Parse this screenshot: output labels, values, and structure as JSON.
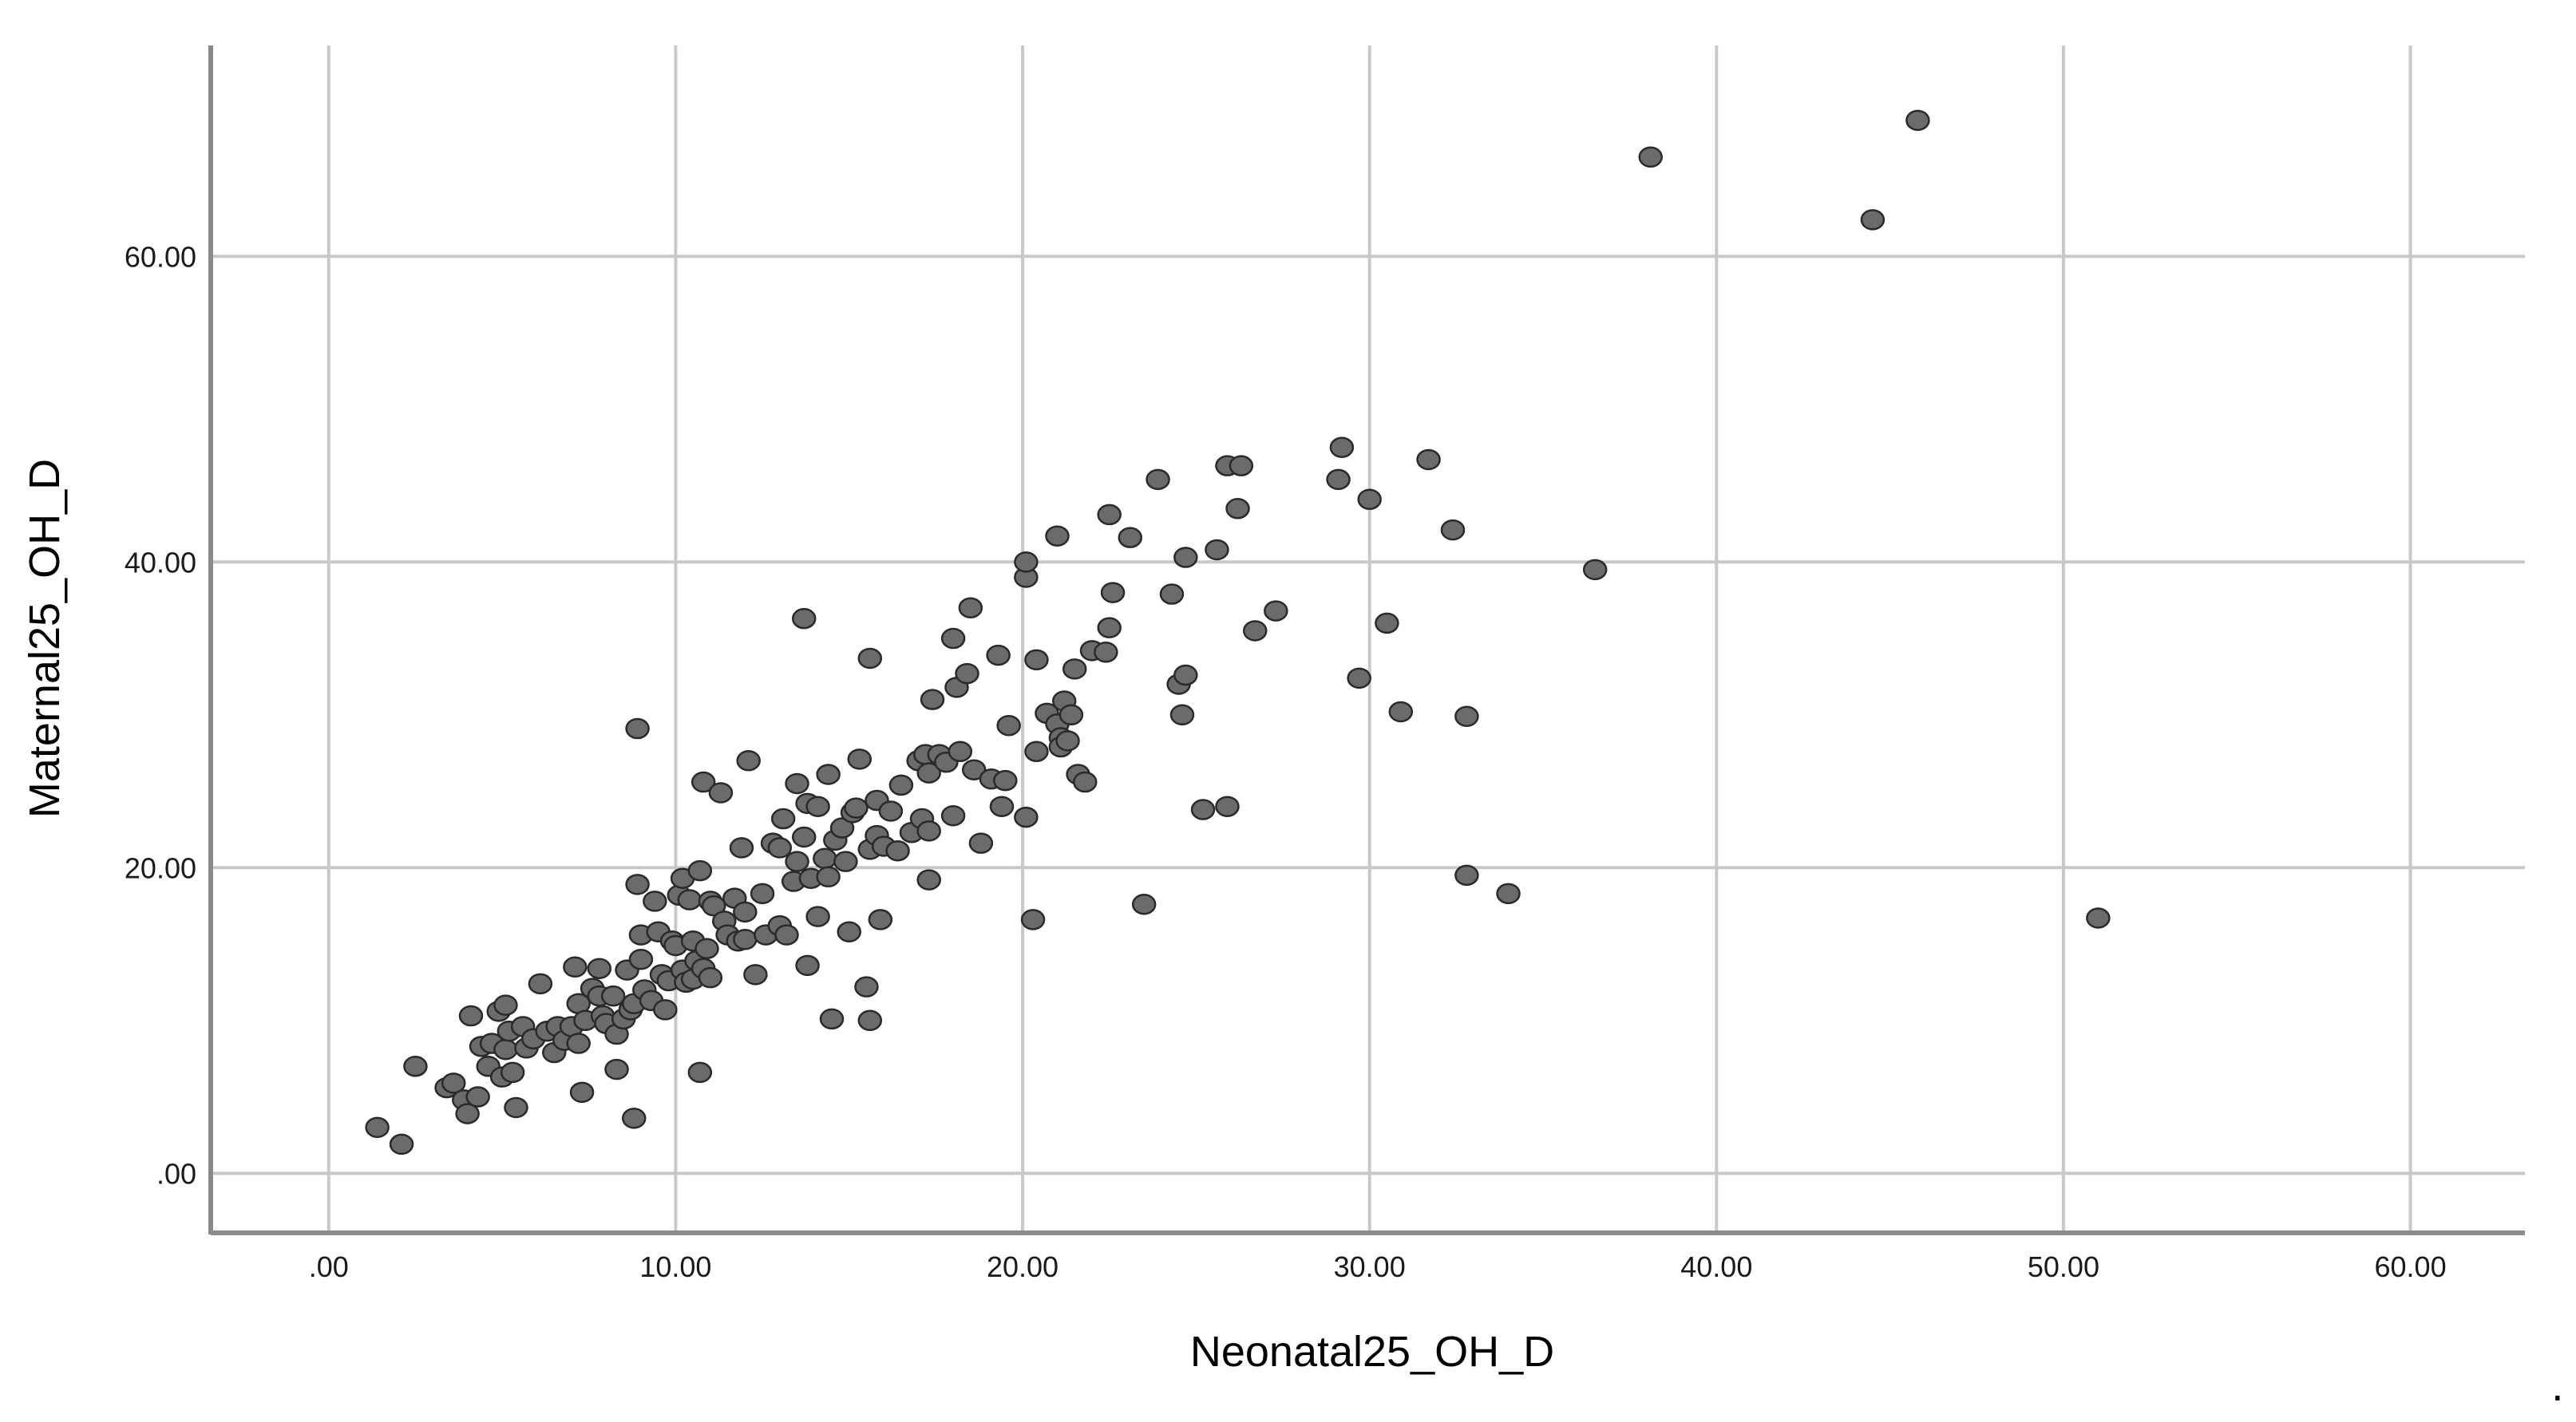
{
  "chart_data": {
    "type": "scatter",
    "xlabel": "Neonatal25_OH_D",
    "ylabel": "Maternal25_OH_D",
    "xlim": [
      -3.4,
      63.3
    ],
    "ylim": [
      -3.9,
      73.8
    ],
    "x_ticks": [
      ".00",
      "10.00",
      "20.00",
      "30.00",
      "40.00",
      "50.00",
      "60.00"
    ],
    "y_ticks": [
      ".00",
      "20.00",
      "40.00",
      "60.00"
    ],
    "x_tick_values": [
      0,
      10,
      20,
      30,
      40,
      50,
      60
    ],
    "y_tick_values": [
      0,
      20,
      40,
      60
    ],
    "grid": true,
    "marker_color": "#6b6b6b",
    "marker_edge_color": "#2a2a2a",
    "grid_color": "#c8c8c8",
    "axis_color": "#8a8a8a",
    "trailing_mark": ".",
    "points": [
      [
        1.4,
        3.0
      ],
      [
        2.1,
        1.9
      ],
      [
        2.5,
        7.0
      ],
      [
        3.4,
        5.6
      ],
      [
        3.6,
        5.9
      ],
      [
        3.9,
        4.8
      ],
      [
        4.0,
        3.9
      ],
      [
        4.1,
        10.3
      ],
      [
        4.3,
        5.0
      ],
      [
        4.4,
        8.3
      ],
      [
        4.6,
        7.0
      ],
      [
        4.7,
        8.5
      ],
      [
        4.9,
        10.6
      ],
      [
        5.0,
        6.3
      ],
      [
        5.1,
        11.0
      ],
      [
        5.1,
        8.1
      ],
      [
        5.2,
        9.3
      ],
      [
        5.3,
        6.6
      ],
      [
        5.4,
        4.3
      ],
      [
        5.6,
        9.6
      ],
      [
        5.7,
        8.2
      ],
      [
        5.9,
        8.8
      ],
      [
        6.1,
        12.4
      ],
      [
        6.3,
        9.3
      ],
      [
        6.5,
        7.9
      ],
      [
        6.6,
        9.6
      ],
      [
        6.8,
        8.7
      ],
      [
        7.0,
        9.6
      ],
      [
        7.1,
        13.5
      ],
      [
        7.2,
        8.5
      ],
      [
        7.2,
        11.1
      ],
      [
        7.3,
        5.3
      ],
      [
        7.4,
        10.0
      ],
      [
        7.6,
        12.1
      ],
      [
        7.8,
        11.6
      ],
      [
        7.8,
        13.4
      ],
      [
        7.9,
        10.3
      ],
      [
        8.0,
        9.8
      ],
      [
        8.2,
        11.6
      ],
      [
        8.3,
        9.1
      ],
      [
        8.3,
        6.8
      ],
      [
        8.5,
        10.1
      ],
      [
        8.6,
        13.3
      ],
      [
        8.7,
        10.7
      ],
      [
        8.8,
        11.1
      ],
      [
        8.8,
        3.6
      ],
      [
        8.9,
        29.1
      ],
      [
        8.9,
        18.9
      ],
      [
        9.0,
        15.6
      ],
      [
        9.0,
        14.0
      ],
      [
        9.1,
        12.0
      ],
      [
        9.3,
        11.3
      ],
      [
        9.4,
        17.8
      ],
      [
        9.5,
        15.8
      ],
      [
        9.6,
        13.0
      ],
      [
        9.7,
        10.7
      ],
      [
        9.8,
        12.6
      ],
      [
        9.9,
        15.2
      ],
      [
        10.0,
        14.9
      ],
      [
        10.1,
        18.2
      ],
      [
        10.2,
        13.3
      ],
      [
        10.2,
        19.3
      ],
      [
        10.3,
        12.5
      ],
      [
        10.4,
        17.9
      ],
      [
        10.5,
        15.2
      ],
      [
        10.5,
        12.7
      ],
      [
        10.6,
        13.9
      ],
      [
        10.7,
        19.8
      ],
      [
        10.7,
        6.6
      ],
      [
        10.8,
        13.4
      ],
      [
        10.8,
        25.6
      ],
      [
        10.9,
        14.7
      ],
      [
        11.0,
        12.8
      ],
      [
        11.0,
        17.8
      ],
      [
        11.1,
        17.5
      ],
      [
        11.3,
        24.9
      ],
      [
        11.4,
        16.5
      ],
      [
        11.5,
        15.6
      ],
      [
        11.7,
        18.0
      ],
      [
        11.8,
        15.2
      ],
      [
        11.9,
        21.3
      ],
      [
        12.0,
        17.1
      ],
      [
        12.0,
        15.3
      ],
      [
        12.1,
        27.0
      ],
      [
        12.3,
        13.0
      ],
      [
        12.5,
        18.3
      ],
      [
        12.6,
        15.6
      ],
      [
        12.8,
        21.6
      ],
      [
        13.0,
        16.2
      ],
      [
        13.0,
        21.3
      ],
      [
        13.1,
        23.2
      ],
      [
        13.2,
        15.6
      ],
      [
        13.4,
        19.1
      ],
      [
        13.5,
        20.4
      ],
      [
        13.5,
        25.5
      ],
      [
        13.7,
        22.0
      ],
      [
        13.7,
        36.3
      ],
      [
        13.8,
        24.2
      ],
      [
        13.8,
        13.6
      ],
      [
        13.9,
        19.3
      ],
      [
        14.1,
        16.8
      ],
      [
        14.1,
        24.0
      ],
      [
        14.3,
        20.6
      ],
      [
        14.4,
        26.1
      ],
      [
        14.4,
        19.4
      ],
      [
        14.5,
        10.1
      ],
      [
        14.6,
        21.8
      ],
      [
        14.8,
        22.6
      ],
      [
        14.9,
        20.4
      ],
      [
        15.0,
        15.8
      ],
      [
        15.1,
        23.6
      ],
      [
        15.2,
        23.9
      ],
      [
        15.3,
        27.1
      ],
      [
        15.5,
        12.2
      ],
      [
        15.6,
        21.2
      ],
      [
        15.6,
        33.7
      ],
      [
        15.6,
        10.0
      ],
      [
        15.8,
        24.4
      ],
      [
        15.8,
        22.1
      ],
      [
        15.9,
        16.6
      ],
      [
        16.0,
        21.4
      ],
      [
        16.2,
        23.7
      ],
      [
        16.4,
        21.1
      ],
      [
        16.5,
        25.4
      ],
      [
        16.8,
        22.3
      ],
      [
        17.0,
        27.0
      ],
      [
        17.1,
        23.2
      ],
      [
        17.2,
        27.4
      ],
      [
        17.3,
        26.2
      ],
      [
        17.3,
        22.4
      ],
      [
        17.3,
        19.2
      ],
      [
        17.4,
        31.0
      ],
      [
        17.6,
        27.4
      ],
      [
        17.8,
        26.9
      ],
      [
        18.0,
        35.0
      ],
      [
        18.0,
        23.4
      ],
      [
        18.1,
        31.8
      ],
      [
        18.2,
        27.6
      ],
      [
        18.4,
        32.7
      ],
      [
        18.5,
        37.0
      ],
      [
        18.6,
        26.4
      ],
      [
        18.8,
        21.6
      ],
      [
        19.1,
        25.8
      ],
      [
        19.3,
        33.9
      ],
      [
        19.4,
        24.0
      ],
      [
        19.5,
        25.7
      ],
      [
        19.6,
        29.3
      ],
      [
        20.1,
        39.0
      ],
      [
        20.1,
        23.3
      ],
      [
        20.1,
        40.0
      ],
      [
        20.3,
        16.6
      ],
      [
        20.4,
        33.6
      ],
      [
        20.4,
        27.6
      ],
      [
        20.7,
        30.1
      ],
      [
        21.0,
        41.7
      ],
      [
        21.0,
        29.4
      ],
      [
        21.1,
        28.5
      ],
      [
        21.1,
        27.9
      ],
      [
        21.2,
        30.9
      ],
      [
        21.3,
        28.3
      ],
      [
        21.4,
        30.0
      ],
      [
        21.5,
        33.0
      ],
      [
        21.6,
        26.1
      ],
      [
        21.8,
        25.6
      ],
      [
        22.0,
        34.2
      ],
      [
        22.4,
        34.1
      ],
      [
        22.5,
        35.7
      ],
      [
        22.5,
        43.1
      ],
      [
        22.6,
        38.0
      ],
      [
        23.1,
        41.6
      ],
      [
        23.5,
        17.6
      ],
      [
        23.9,
        45.4
      ],
      [
        24.3,
        37.9
      ],
      [
        24.5,
        32.0
      ],
      [
        24.6,
        30.0
      ],
      [
        24.7,
        40.3
      ],
      [
        24.7,
        32.6
      ],
      [
        25.2,
        23.8
      ],
      [
        25.6,
        40.8
      ],
      [
        25.9,
        24.0
      ],
      [
        25.9,
        46.3
      ],
      [
        26.2,
        43.5
      ],
      [
        26.3,
        46.3
      ],
      [
        26.7,
        35.5
      ],
      [
        27.3,
        36.8
      ],
      [
        29.1,
        45.4
      ],
      [
        29.2,
        47.5
      ],
      [
        29.7,
        32.4
      ],
      [
        30.0,
        44.1
      ],
      [
        30.5,
        36.0
      ],
      [
        30.9,
        30.2
      ],
      [
        31.7,
        46.7
      ],
      [
        32.4,
        42.1
      ],
      [
        32.8,
        29.9
      ],
      [
        32.8,
        19.5
      ],
      [
        34.0,
        18.3
      ],
      [
        36.5,
        39.5
      ],
      [
        38.1,
        66.5
      ],
      [
        44.5,
        62.4
      ],
      [
        45.8,
        68.9
      ],
      [
        51.0,
        16.7
      ]
    ]
  }
}
